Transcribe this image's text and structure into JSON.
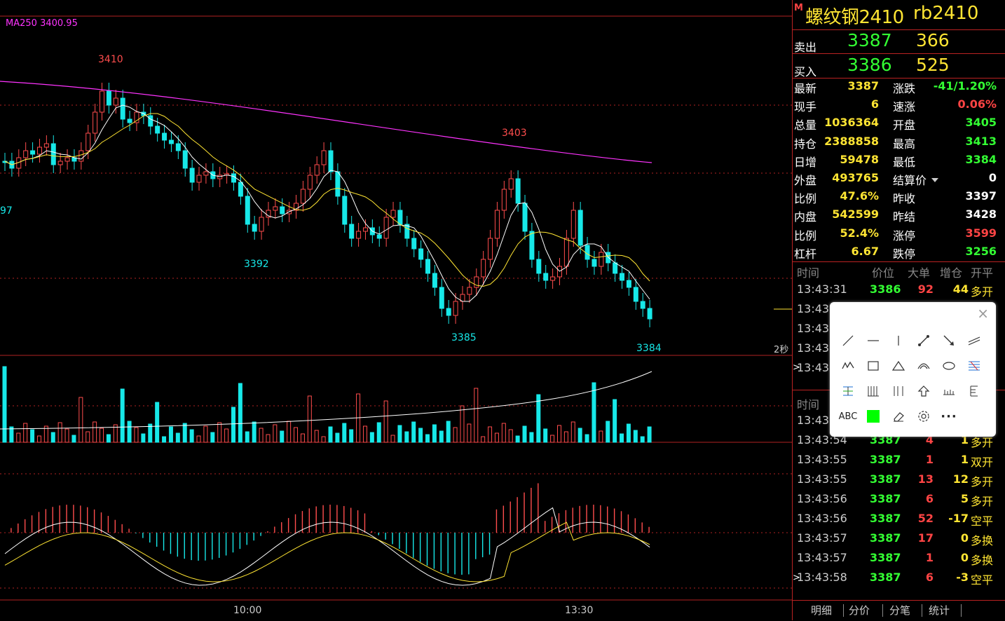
{
  "ma_label": "MA250",
  "ma_value": "3400.95",
  "price_labels": {
    "high1": "3410",
    "high2": "3403",
    "low1": "3392",
    "low2": "3385",
    "low3": "3384",
    "left_cut": "97"
  },
  "timer": "2秒",
  "x_axis": [
    "10:00",
    "13:30"
  ],
  "header": {
    "marker": "M",
    "name": "螺纹钢2410",
    "code": "rb2410"
  },
  "sell": {
    "label": "卖出",
    "price": "3387",
    "vol": "366"
  },
  "buy": {
    "label": "买入",
    "price": "3386",
    "vol": "525"
  },
  "quotes": [
    {
      "l": "最新",
      "v": "3387",
      "vc": "#ffe533",
      "l2": "涨跌",
      "v2": "-41/1.20%",
      "v2c": "#3f3"
    },
    {
      "l": "现手",
      "v": "6",
      "vc": "#ffe533",
      "l2": "速涨",
      "v2": "0.06%",
      "v2c": "#f44"
    },
    {
      "l": "总量",
      "v": "1036364",
      "vc": "#ffe533",
      "l2": "开盘",
      "v2": "3405",
      "v2c": "#3f3"
    },
    {
      "l": "持仓",
      "v": "2388858",
      "vc": "#ffe533",
      "l2": "最高",
      "v2": "3413",
      "v2c": "#3f3"
    },
    {
      "l": "日增",
      "v": "59478",
      "vc": "#ffe533",
      "l2": "最低",
      "v2": "3384",
      "v2c": "#3f3"
    },
    {
      "l": "外盘",
      "v": "493765",
      "vc": "#ffe533",
      "l2": "结算价",
      "v2": "0",
      "v2c": "#fff"
    },
    {
      "l": "比例",
      "v": "47.6%",
      "vc": "#ffe533",
      "l2": "昨收",
      "v2": "3397",
      "v2c": "#fff"
    },
    {
      "l": "内盘",
      "v": "542599",
      "vc": "#ffe533",
      "l2": "昨结",
      "v2": "3428",
      "v2c": "#fff"
    },
    {
      "l": "比例",
      "v": "52.4%",
      "vc": "#ffe533",
      "l2": "涨停",
      "v2": "3599",
      "v2c": "#f44"
    },
    {
      "l": "杠杆",
      "v": "6.67",
      "vc": "#ffe533",
      "l2": "跌停",
      "v2": "3256",
      "v2c": "#3f3"
    }
  ],
  "tick_headers": [
    "时间",
    "价位",
    "大单",
    "增仓",
    "开平"
  ],
  "ticks_top": [
    {
      "t": "13:43:31",
      "p": "3386",
      "v": "92",
      "d": "44",
      "k": "多开",
      "pc": "#3f3",
      "vc": "#f44",
      "dc": "#ffe533",
      "kc": "#ffe533"
    },
    {
      "t": "13:43:",
      "p": "",
      "v": "",
      "d": "",
      "k": ""
    },
    {
      "t": "13:43:",
      "p": "",
      "v": "",
      "d": "",
      "k": ""
    },
    {
      "t": "13:43:",
      "p": "",
      "v": "",
      "d": "",
      "k": ""
    },
    {
      "t": "13:43:",
      "p": "",
      "v": "",
      "d": "",
      "k": ""
    }
  ],
  "tick_headers2": "时间",
  "ticks": [
    {
      "t": "13:43:",
      "p": "",
      "v": "",
      "d": "",
      "k": "",
      "pc": "#3f3",
      "vc": "#f44",
      "dc": "#ffe533",
      "kc": "#ffe533"
    },
    {
      "t": "13:43:54",
      "p": "3387",
      "v": "4",
      "d": "1",
      "k": "多开",
      "pc": "#3f3",
      "vc": "#f44",
      "dc": "#ffe533",
      "kc": "#ffe533"
    },
    {
      "t": "13:43:55",
      "p": "3387",
      "v": "1",
      "d": "1",
      "k": "双开",
      "pc": "#3f3",
      "vc": "#f44",
      "dc": "#ffe533",
      "kc": "#ffe533"
    },
    {
      "t": "13:43:55",
      "p": "3387",
      "v": "13",
      "d": "12",
      "k": "多开",
      "pc": "#3f3",
      "vc": "#f44",
      "dc": "#ffe533",
      "kc": "#ffe533"
    },
    {
      "t": "13:43:56",
      "p": "3387",
      "v": "6",
      "d": "5",
      "k": "多开",
      "pc": "#3f3",
      "vc": "#f44",
      "dc": "#ffe533",
      "kc": "#ffe533"
    },
    {
      "t": "13:43:56",
      "p": "3387",
      "v": "52",
      "d": "-17",
      "k": "空平",
      "pc": "#3f3",
      "vc": "#f44",
      "dc": "#ffe533",
      "kc": "#ffe533"
    },
    {
      "t": "13:43:57",
      "p": "3387",
      "v": "17",
      "d": "0",
      "k": "多换",
      "pc": "#3f3",
      "vc": "#f44",
      "dc": "#ffe533",
      "kc": "#ffe533"
    },
    {
      "t": "13:43:57",
      "p": "3387",
      "v": "1",
      "d": "0",
      "k": "多换",
      "pc": "#3f3",
      "vc": "#f44",
      "dc": "#ffe533",
      "kc": "#ffe533"
    },
    {
      "t": "13:43:58",
      "p": "3387",
      "v": "6",
      "d": "-3",
      "k": "空平",
      "pc": "#3f3",
      "vc": "#f44",
      "dc": "#ffe533",
      "kc": "#ffe533"
    }
  ],
  "tabs": [
    "明细",
    "分价",
    "分笔",
    "统计"
  ],
  "toolbox": {
    "close": "×",
    "abc": "ABC",
    "more": "···"
  },
  "colors": {
    "up": "#ff4d4d",
    "down": "#17e8e8",
    "ma": "#ff33ff",
    "grid": "#b22222"
  }
}
